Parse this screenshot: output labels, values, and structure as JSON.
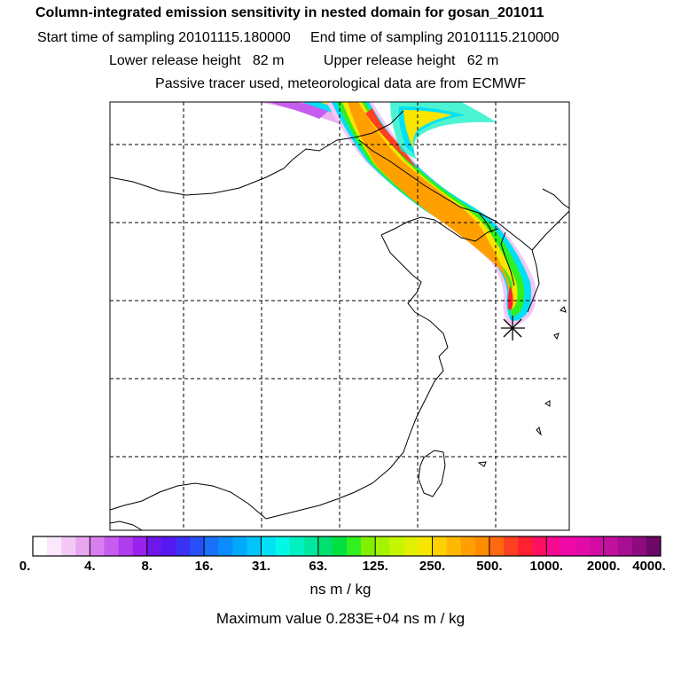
{
  "header": {
    "title": "Column-integrated emission sensitivity in nested domain for gosan_201011",
    "sampling": "Start time of sampling 20101115.180000     End time of sampling 20101115.210000",
    "release": "Lower release height   82 m          Upper release height   62 m",
    "tracer": "Passive tracer used, meteorological data are from ECMWF"
  },
  "colorbar": {
    "labels": [
      "0.",
      "4.",
      "8.",
      "16.",
      "31.",
      "63.",
      "125.",
      "250.",
      "500.",
      "1000.",
      "2000.",
      "4000."
    ],
    "colors": [
      "#ffffff",
      "#fce8fc",
      "#f4c8f6",
      "#e8a6f0",
      "#d97ef0",
      "#c65cf0",
      "#b03cf0",
      "#9a22ec",
      "#6d18e8",
      "#5418f0",
      "#3c30f4",
      "#2850f8",
      "#1a70fa",
      "#0a8cfc",
      "#00a8fc",
      "#00c4fc",
      "#00e0f4",
      "#00f8e6",
      "#00f0c0",
      "#00e8a0",
      "#00e070",
      "#00e040",
      "#30f020",
      "#80f000",
      "#a4f400",
      "#c4f600",
      "#e0f000",
      "#f8e600",
      "#ffd000",
      "#ffb800",
      "#ffa000",
      "#ff8c00",
      "#ff6a10",
      "#ff4020",
      "#ff2030",
      "#ff1060",
      "#f80a90",
      "#f008a8",
      "#e40aa8",
      "#d40aa4",
      "#c0109e",
      "#a80e90",
      "#8c0c80",
      "#6c0866"
    ],
    "units": "ns m / kg",
    "max_value_text": "Maximum value  0.283E+04 ns m / kg"
  },
  "map": {
    "receptor_marker": "asterisk-icon",
    "plume_colors": {
      "outer": "#b040f0",
      "cyan": "#00f0f0",
      "green": "#30f040",
      "yellow": "#f0f000",
      "orange": "#ff9000",
      "red": "#ff2020"
    }
  }
}
